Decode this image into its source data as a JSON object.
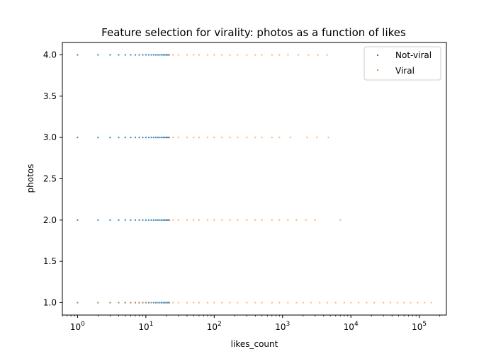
{
  "chart_data": {
    "type": "scatter",
    "title": "Feature selection for virality: photos as a function of likes",
    "xlabel": "likes_count",
    "ylabel": "photos",
    "xscale": "log",
    "xlim": [
      0.6,
      250000
    ],
    "ylim": [
      0.85,
      4.15
    ],
    "x_ticks": [
      {
        "value": 1,
        "base": "10",
        "exp": "0"
      },
      {
        "value": 10,
        "base": "10",
        "exp": "1"
      },
      {
        "value": 100,
        "base": "10",
        "exp": "2"
      },
      {
        "value": 1000,
        "base": "10",
        "exp": "3"
      },
      {
        "value": 10000,
        "base": "10",
        "exp": "4"
      },
      {
        "value": 100000,
        "base": "10",
        "exp": "5"
      }
    ],
    "y_ticks": [
      {
        "value": 1.0,
        "label": "1.0"
      },
      {
        "value": 1.5,
        "label": "1.5"
      },
      {
        "value": 2.0,
        "label": "2.0"
      },
      {
        "value": 2.5,
        "label": "2.5"
      },
      {
        "value": 3.0,
        "label": "3.0"
      },
      {
        "value": 3.5,
        "label": "3.5"
      },
      {
        "value": 4.0,
        "label": "4.0"
      }
    ],
    "grid": false,
    "legend_position": "top-right",
    "series": [
      {
        "name": "Not-viral",
        "color": "#1f77b4",
        "points_by_photos": {
          "1": [
            1,
            2,
            3,
            4,
            5,
            6,
            7,
            8,
            9,
            10,
            11,
            12,
            13,
            14,
            15,
            16,
            17,
            18,
            19,
            20,
            21,
            22
          ],
          "2": [
            1,
            2,
            3,
            4,
            5,
            6,
            7,
            8,
            9,
            10,
            11,
            12,
            13,
            14,
            15,
            16,
            17,
            18,
            19,
            20,
            21,
            22
          ],
          "3": [
            1,
            2,
            3,
            4,
            5,
            6,
            7,
            8,
            9,
            10,
            11,
            12,
            13,
            14,
            15,
            16,
            17,
            18,
            19,
            20,
            21,
            22
          ],
          "4": [
            1,
            2,
            3,
            4,
            5,
            6,
            7,
            8,
            9,
            10,
            11,
            12,
            13,
            14,
            15,
            16,
            17,
            18,
            19,
            20,
            21,
            22
          ]
        }
      },
      {
        "name": "Viral",
        "color": "#ff7f0e",
        "points_by_photos": {
          "1": [
            1,
            2,
            3,
            4,
            5,
            6,
            7,
            8,
            9,
            10,
            12,
            15,
            20,
            25,
            30,
            40,
            50,
            60,
            80,
            100,
            130,
            170,
            220,
            300,
            400,
            500,
            700,
            900,
            1200,
            1600,
            2000,
            2600,
            3500,
            4500,
            6000,
            8000,
            10000,
            13000,
            17000,
            22000,
            30000,
            38000,
            48000,
            60000,
            75000,
            95000,
            120000,
            150000
          ],
          "2": [
            22,
            25,
            30,
            40,
            50,
            60,
            80,
            100,
            130,
            170,
            220,
            300,
            400,
            500,
            700,
            900,
            1200,
            1600,
            2200,
            3000,
            7000
          ],
          "3": [
            22,
            25,
            30,
            40,
            50,
            60,
            80,
            100,
            130,
            170,
            220,
            300,
            400,
            500,
            700,
            900,
            1300,
            2300,
            3200,
            4700
          ],
          "4": [
            22,
            25,
            30,
            40,
            50,
            60,
            80,
            100,
            130,
            170,
            220,
            300,
            400,
            500,
            700,
            900,
            1200,
            1700,
            2400,
            3300,
            4500
          ]
        }
      }
    ]
  }
}
